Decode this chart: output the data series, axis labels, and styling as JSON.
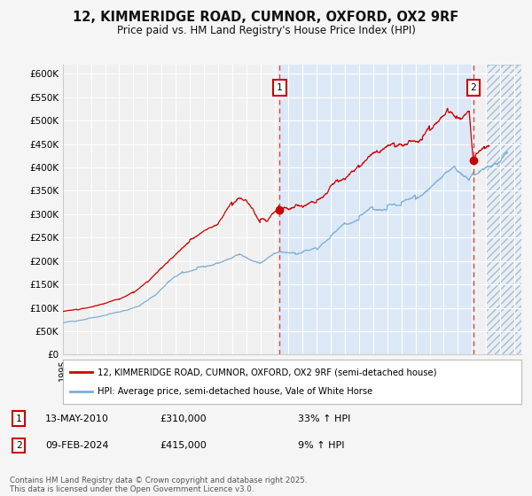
{
  "title": "12, KIMMERIDGE ROAD, CUMNOR, OXFORD, OX2 9RF",
  "subtitle": "Price paid vs. HM Land Registry's House Price Index (HPI)",
  "ylim": [
    0,
    620000
  ],
  "yticks": [
    0,
    50000,
    100000,
    150000,
    200000,
    250000,
    300000,
    350000,
    400000,
    450000,
    500000,
    550000,
    600000
  ],
  "ytick_labels": [
    "£0",
    "£50K",
    "£100K",
    "£150K",
    "£200K",
    "£250K",
    "£300K",
    "£350K",
    "£400K",
    "£450K",
    "£500K",
    "£550K",
    "£600K"
  ],
  "xlim_start": 1995.0,
  "xlim_end": 2027.5,
  "bg_color": "#f5f5f5",
  "plot_bg_color": "#f0f0f0",
  "grid_color": "#ffffff",
  "red_line_color": "#cc0000",
  "blue_line_color": "#7bafd4",
  "shade_color": "#dce8f5",
  "hatch_region_start": 2025.0,
  "marker1_x": 2010.37,
  "marker1_y": 310000,
  "marker2_x": 2024.1,
  "marker2_y": 415000,
  "legend_line1": "12, KIMMERIDGE ROAD, CUMNOR, OXFORD, OX2 9RF (semi-detached house)",
  "legend_line2": "HPI: Average price, semi-detached house, Vale of White Horse",
  "marker1_date": "13-MAY-2010",
  "marker1_price": "£310,000",
  "marker1_hpi": "33% ↑ HPI",
  "marker2_date": "09-FEB-2024",
  "marker2_price": "£415,000",
  "marker2_hpi": "9% ↑ HPI",
  "footer": "Contains HM Land Registry data © Crown copyright and database right 2025.\nThis data is licensed under the Open Government Licence v3.0."
}
